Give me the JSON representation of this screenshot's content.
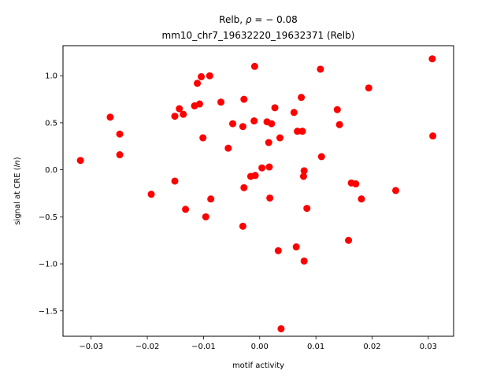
{
  "chart_data": {
    "type": "scatter",
    "title_line1_prefix": "Relb, ",
    "title_line1_rho": "ρ",
    "title_line1_suffix": " = − 0.08",
    "title_line2": "mm10_chr7_19632220_19632371 (Relb)",
    "xlabel": "motif activity",
    "ylabel_prefix": "signal at CRE (",
    "ylabel_italic": "ln",
    "ylabel_suffix": ")",
    "xlim": [
      -0.035,
      0.0345
    ],
    "ylim": [
      -1.77,
      1.32
    ],
    "xticks": [
      -0.03,
      -0.02,
      -0.01,
      0.0,
      0.01,
      0.02,
      0.03
    ],
    "xtick_labels": [
      "−0.03",
      "−0.02",
      "−0.01",
      "0.00",
      "0.01",
      "0.02",
      "0.03"
    ],
    "yticks": [
      -1.5,
      -1.0,
      -0.5,
      0.0,
      0.5,
      1.0
    ],
    "ytick_labels": [
      "−1.5",
      "−1.0",
      "−0.5",
      "0.0",
      "0.5",
      "1.0"
    ],
    "grid": false,
    "marker_color": "#ff0000",
    "points": [
      {
        "x": -0.0319,
        "y": 0.1
      },
      {
        "x": -0.0266,
        "y": 0.56
      },
      {
        "x": -0.0249,
        "y": 0.38
      },
      {
        "x": -0.0249,
        "y": 0.16
      },
      {
        "x": -0.0193,
        "y": -0.26
      },
      {
        "x": -0.0151,
        "y": 0.57
      },
      {
        "x": -0.0151,
        "y": -0.12
      },
      {
        "x": -0.0143,
        "y": 0.65
      },
      {
        "x": -0.0136,
        "y": 0.59
      },
      {
        "x": -0.0132,
        "y": -0.42
      },
      {
        "x": -0.0116,
        "y": 0.68
      },
      {
        "x": -0.0111,
        "y": 0.92
      },
      {
        "x": -0.0107,
        "y": 0.7
      },
      {
        "x": -0.0104,
        "y": 0.99
      },
      {
        "x": -0.0101,
        "y": 0.34
      },
      {
        "x": -0.0096,
        "y": -0.5
      },
      {
        "x": -0.0089,
        "y": 1.0
      },
      {
        "x": -0.0087,
        "y": -0.31
      },
      {
        "x": -0.0069,
        "y": 0.72
      },
      {
        "x": -0.0056,
        "y": 0.23
      },
      {
        "x": -0.0048,
        "y": 0.49
      },
      {
        "x": -0.003,
        "y": -0.6
      },
      {
        "x": -0.003,
        "y": 0.46
      },
      {
        "x": -0.0028,
        "y": 0.75
      },
      {
        "x": -0.0028,
        "y": -0.19
      },
      {
        "x": -0.0016,
        "y": -0.07
      },
      {
        "x": -0.001,
        "y": 0.52
      },
      {
        "x": -0.0009,
        "y": 1.1
      },
      {
        "x": -0.0008,
        "y": -0.06
      },
      {
        "x": 0.0004,
        "y": 0.02
      },
      {
        "x": 0.0013,
        "y": 0.51
      },
      {
        "x": 0.0016,
        "y": 0.29
      },
      {
        "x": 0.0017,
        "y": 0.03
      },
      {
        "x": 0.0018,
        "y": -0.3
      },
      {
        "x": 0.0021,
        "y": 0.49
      },
      {
        "x": 0.0027,
        "y": 0.66
      },
      {
        "x": 0.0033,
        "y": -0.86
      },
      {
        "x": 0.0036,
        "y": 0.34
      },
      {
        "x": 0.0038,
        "y": -1.69
      },
      {
        "x": 0.0061,
        "y": 0.61
      },
      {
        "x": 0.0065,
        "y": -0.82
      },
      {
        "x": 0.0067,
        "y": 0.41
      },
      {
        "x": 0.0074,
        "y": 0.77
      },
      {
        "x": 0.0076,
        "y": 0.41
      },
      {
        "x": 0.0078,
        "y": -0.07
      },
      {
        "x": 0.0079,
        "y": -0.01
      },
      {
        "x": 0.0079,
        "y": -0.97
      },
      {
        "x": 0.0084,
        "y": -0.41
      },
      {
        "x": 0.0108,
        "y": 1.07
      },
      {
        "x": 0.011,
        "y": 0.14
      },
      {
        "x": 0.0138,
        "y": 0.64
      },
      {
        "x": 0.0142,
        "y": 0.48
      },
      {
        "x": 0.0158,
        "y": -0.75
      },
      {
        "x": 0.0163,
        "y": -0.14
      },
      {
        "x": 0.0171,
        "y": -0.15
      },
      {
        "x": 0.0181,
        "y": -0.31
      },
      {
        "x": 0.0194,
        "y": 0.87
      },
      {
        "x": 0.0242,
        "y": -0.22
      },
      {
        "x": 0.0307,
        "y": 1.18
      },
      {
        "x": 0.0308,
        "y": 0.36
      }
    ]
  }
}
